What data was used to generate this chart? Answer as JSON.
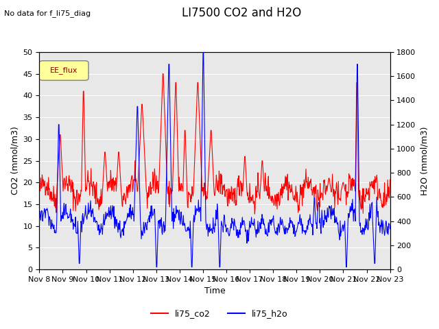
{
  "title": "LI7500 CO2 and H2O",
  "subtitle": "No data for f_li75_diag",
  "xlabel": "Time",
  "ylabel_left": "CO2 (mmol/m3)",
  "ylabel_right": "H2O (mmol/m3)",
  "ylim_left": [
    0,
    50
  ],
  "ylim_right": [
    0,
    1800
  ],
  "yticks_left": [
    0,
    5,
    10,
    15,
    20,
    25,
    30,
    35,
    40,
    45,
    50
  ],
  "yticks_right": [
    0,
    200,
    400,
    600,
    800,
    1000,
    1200,
    1400,
    1600,
    1800
  ],
  "x_labels": [
    "Nov 8",
    "Nov 9",
    "Nov 10",
    "Nov 11",
    "Nov 12",
    "Nov 13",
    "Nov 14",
    "Nov 15",
    "Nov 16",
    "Nov 17",
    "Nov 18",
    "Nov 19",
    "Nov 20",
    "Nov 21",
    "Nov 22",
    "Nov 23"
  ],
  "legend_label_co2": "li75_co2",
  "legend_label_h2o": "li75_h2o",
  "color_co2": "#ff0000",
  "color_h2o": "#0000ff",
  "legend_box_color": "#ffff99",
  "legend_box_label": "EE_flux",
  "background_color": "#ffffff",
  "plot_bg_color": "#e8e8e8",
  "grid_color": "#ffffff",
  "title_fontsize": 12,
  "label_fontsize": 9,
  "tick_fontsize": 8
}
